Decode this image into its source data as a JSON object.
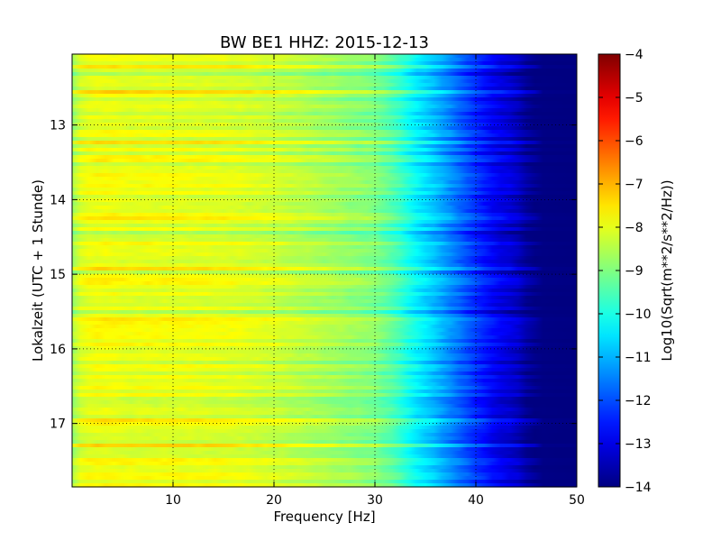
{
  "chart_data": {
    "type": "heatmap",
    "title": "BW BE1 HHZ: 2015-12-13",
    "xlabel": "Frequency [Hz]",
    "ylabel": "Lokalzeit (UTC + 1 Stunde)",
    "xlim": [
      0,
      50
    ],
    "ylim": [
      12.05,
      17.85
    ],
    "y_inverted": true,
    "x_ticks": [
      10,
      20,
      30,
      40,
      50
    ],
    "y_ticks": [
      13,
      14,
      15,
      16,
      17
    ],
    "grid": true,
    "colorbar": {
      "label": "Log10(Sqrt(m**2/s**2/Hz))",
      "range": [
        -14,
        -4
      ],
      "ticks": [
        -4,
        -5,
        -6,
        -7,
        -8,
        -9,
        -10,
        -11,
        -12,
        -13,
        -14
      ],
      "colormap": "jet"
    },
    "frequency_profile": {
      "frequency_hz": [
        0,
        1,
        3,
        6,
        10,
        15,
        20,
        25,
        28,
        30,
        32,
        34,
        36,
        38,
        40,
        42,
        44,
        45.5,
        50
      ],
      "log10_amplitude": [
        -8.7,
        -8.0,
        -7.9,
        -8.0,
        -8.0,
        -8.05,
        -8.25,
        -8.6,
        -8.85,
        -9.0,
        -9.5,
        -10.3,
        -10.9,
        -11.6,
        -12.3,
        -12.9,
        -13.3,
        -13.95,
        -14
      ]
    },
    "notes_time_bands": "alternating brighter/darker horizontal stripes across all times"
  },
  "colors": {
    "jet_stops": [
      "#000080",
      "#0000ff",
      "#00ffff",
      "#ffff00",
      "#ff0000",
      "#800000"
    ]
  }
}
